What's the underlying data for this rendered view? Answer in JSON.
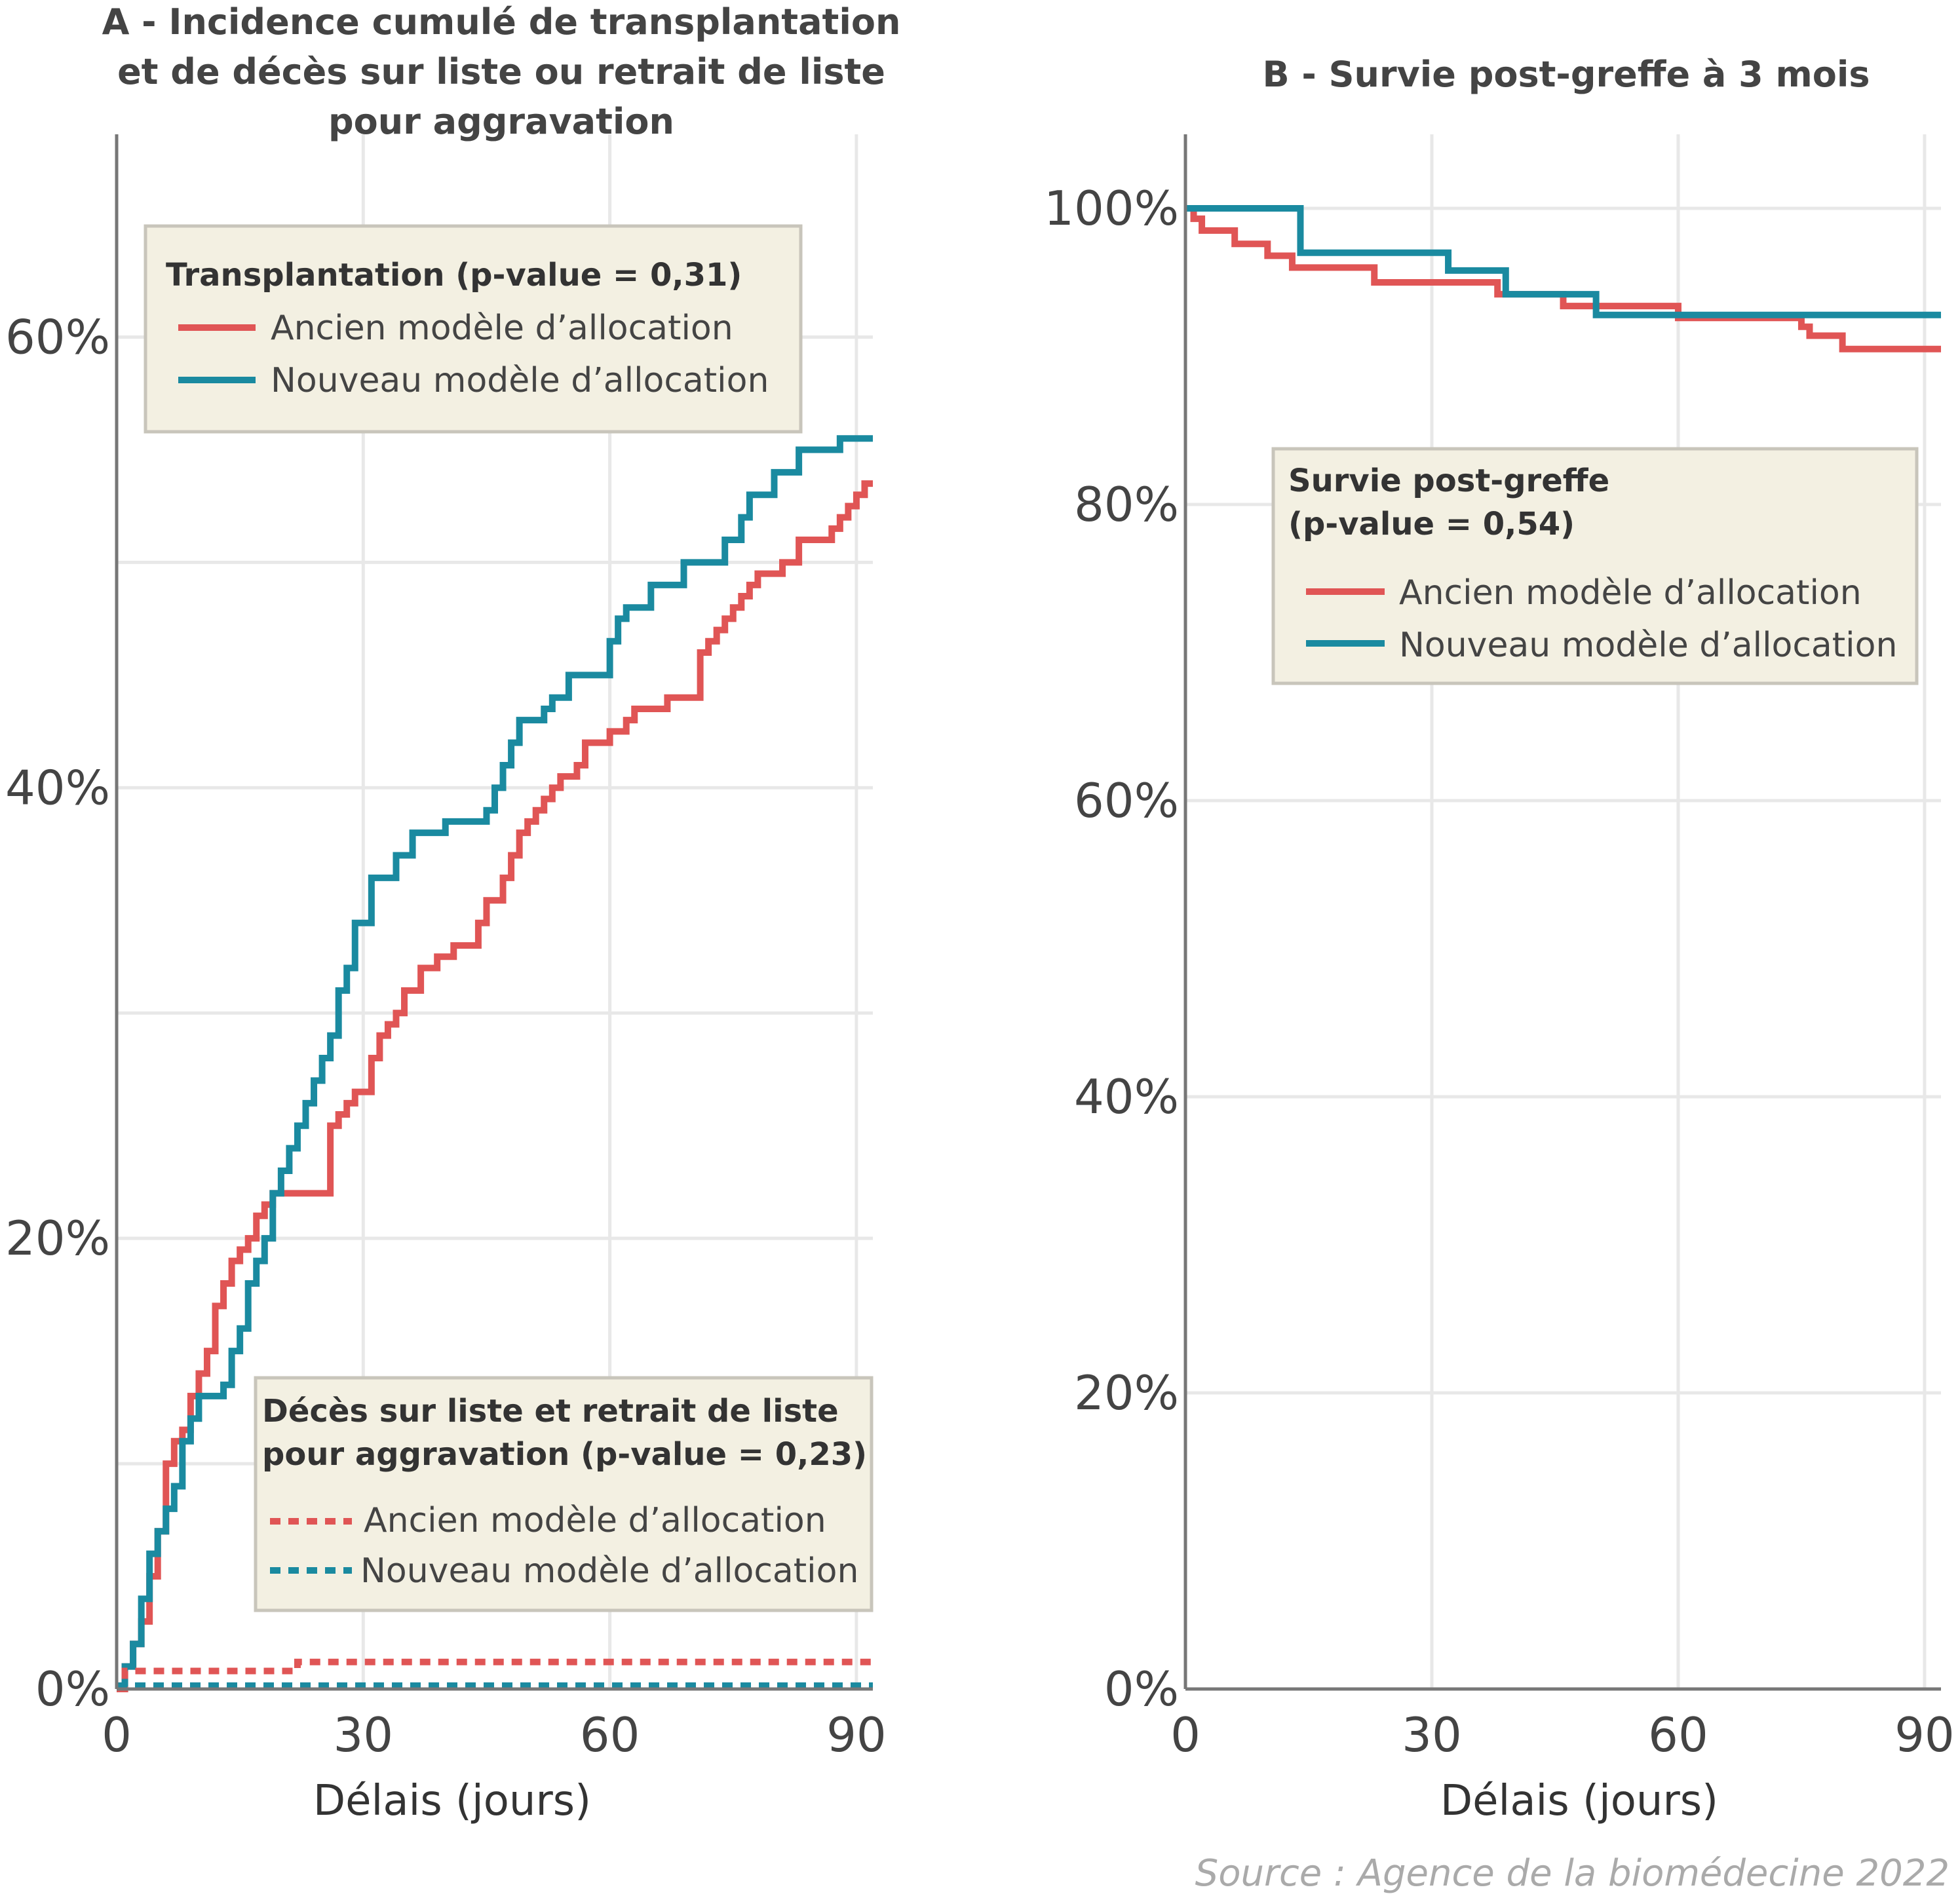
{
  "colors": {
    "ancien": "#e05555",
    "nouveau": "#1a8aa0",
    "grid": "#e8e8e8",
    "axis": "#777777",
    "legend_bg": "#f3f0e2"
  },
  "source": "Source : Agence de la biomédecine 2022",
  "chart_data": [
    {
      "type": "line",
      "title_lines": [
        "A - Incidence cumulé de transplantation",
        "et de décès sur liste ou retrait de liste",
        "pour aggravation"
      ],
      "xlabel": "Délais (jours)",
      "ylabel": "",
      "xlim": [
        0,
        92
      ],
      "ylim": [
        0,
        69
      ],
      "x_ticks": [
        0,
        30,
        60,
        90
      ],
      "x_tick_labels": [
        "0",
        "30",
        "60",
        "90"
      ],
      "y_ticks": [
        0,
        20,
        40,
        60
      ],
      "y_tick_labels": [
        "0%",
        "20%",
        "40%",
        "60%"
      ],
      "y_minor_grid": [
        10,
        30,
        50
      ],
      "grid": true,
      "legends": [
        {
          "title": "Transplantation (p-value = 0,31)",
          "position": "top-left",
          "entries": [
            "Ancien modèle d’allocation",
            "Nouveau modèle d’allocation"
          ],
          "style": "solid"
        },
        {
          "title_lines": [
            "Décès sur liste et retrait de liste",
            "pour aggravation (p-value = 0,23)"
          ],
          "position": "lower-right",
          "entries": [
            "Ancien modèle d’allocation",
            "Nouveau modèle d’allocation"
          ],
          "style": "dashed"
        }
      ],
      "series": [
        {
          "name": "Ancien modèle d’allocation",
          "group": "Transplantation",
          "color_key": "ancien",
          "style": "step",
          "x": [
            0,
            1,
            2,
            3,
            4,
            5,
            6,
            7,
            8,
            9,
            10,
            11,
            12,
            13,
            14,
            15,
            16,
            17,
            18,
            19,
            20,
            22,
            26,
            27,
            28,
            29,
            31,
            32,
            33,
            34,
            35,
            37,
            39,
            41,
            44,
            45,
            47,
            48,
            49,
            50,
            51,
            52,
            53,
            54,
            56,
            57,
            60,
            62,
            63,
            67,
            71,
            72,
            73,
            74,
            75,
            76,
            77,
            78,
            81,
            83,
            87,
            88,
            89,
            90,
            91,
            92
          ],
          "y": [
            0,
            1,
            2,
            3,
            5,
            7,
            10,
            11,
            11.5,
            13,
            14,
            15,
            17,
            18,
            19,
            19.5,
            20,
            21,
            21.5,
            22,
            22,
            22,
            25,
            25.5,
            26,
            26.5,
            28,
            29,
            29.5,
            30,
            31,
            32,
            32.5,
            33,
            34,
            35,
            36,
            37,
            38,
            38.5,
            39,
            39.5,
            40,
            40.5,
            41,
            42,
            42.5,
            43,
            43.5,
            44,
            46,
            46.5,
            47,
            47.5,
            48,
            48.5,
            49,
            49.5,
            50,
            51,
            51.5,
            52,
            52.5,
            53,
            53.5,
            53.5
          ]
        },
        {
          "name": "Nouveau modèle d’allocation",
          "group": "Transplantation",
          "color_key": "nouveau",
          "style": "step",
          "x": [
            0,
            1,
            2,
            3,
            4,
            5,
            6,
            7,
            8,
            9,
            10,
            12,
            13,
            14,
            15,
            16,
            17,
            18,
            19,
            20,
            21,
            22,
            23,
            24,
            25,
            26,
            27,
            28,
            29,
            31,
            34,
            36,
            40,
            45,
            46,
            47,
            48,
            49,
            52,
            53,
            55,
            60,
            61,
            62,
            65,
            69,
            74,
            76,
            77,
            80,
            83,
            88,
            92
          ],
          "y": [
            0,
            1,
            2,
            4,
            6,
            7,
            8,
            9,
            11,
            12,
            13,
            13,
            13.5,
            15,
            16,
            18,
            19,
            20,
            22,
            23,
            24,
            25,
            26,
            27,
            28,
            29,
            31,
            32,
            34,
            36,
            37,
            38,
            38.5,
            39,
            40,
            41,
            42,
            43,
            43.5,
            44,
            45,
            46.5,
            47.5,
            48,
            49,
            50,
            51,
            52,
            53,
            54,
            55,
            55.5,
            55.5
          ]
        },
        {
          "name": "Ancien modèle d’allocation",
          "group": "Décès sur liste et retrait de liste pour aggravation",
          "color_key": "ancien",
          "style": "dashed-step",
          "x": [
            0,
            1,
            22,
            92
          ],
          "y": [
            0,
            0.8,
            1.2,
            1.2
          ]
        },
        {
          "name": "Nouveau modèle d’allocation",
          "group": "Décès sur liste et retrait de liste pour aggravation",
          "color_key": "nouveau",
          "style": "dashed-step",
          "x": [
            0,
            92
          ],
          "y": [
            0.15,
            0.15
          ]
        }
      ]
    },
    {
      "type": "line",
      "title_lines": [
        "B - Survie post-greffe à 3 mois"
      ],
      "xlabel": "Délais (jours)",
      "ylabel": "",
      "xlim": [
        0,
        92
      ],
      "ylim": [
        0,
        105
      ],
      "x_ticks": [
        0,
        30,
        60,
        90
      ],
      "x_tick_labels": [
        "0",
        "30",
        "60",
        "90"
      ],
      "y_ticks": [
        0,
        20,
        40,
        60,
        80,
        100
      ],
      "y_tick_labels": [
        "0%",
        "20%",
        "40%",
        "60%",
        "80%",
        "100%"
      ],
      "grid": true,
      "legends": [
        {
          "title_lines": [
            "Survie post-greffe",
            "(p-value = 0,54)"
          ],
          "position": "upper-right",
          "entries": [
            "Ancien modèle d’allocation",
            "Nouveau modèle d’allocation"
          ],
          "style": "solid"
        }
      ],
      "series": [
        {
          "name": "Ancien modèle d’allocation",
          "color_key": "ancien",
          "style": "step",
          "x": [
            0,
            1,
            2,
            6,
            10,
            13,
            23,
            38,
            46,
            60,
            75,
            76,
            80,
            92
          ],
          "y": [
            100,
            99.3,
            98.5,
            97.6,
            96.8,
            96,
            95,
            94.2,
            93.4,
            92.6,
            92,
            91.4,
            90.5,
            90.5
          ]
        },
        {
          "name": "Nouveau modèle d’allocation",
          "color_key": "nouveau",
          "style": "step",
          "x": [
            0,
            14,
            32,
            39,
            50,
            92
          ],
          "y": [
            100,
            97,
            95.8,
            94.2,
            92.8,
            92.8
          ]
        }
      ]
    }
  ]
}
